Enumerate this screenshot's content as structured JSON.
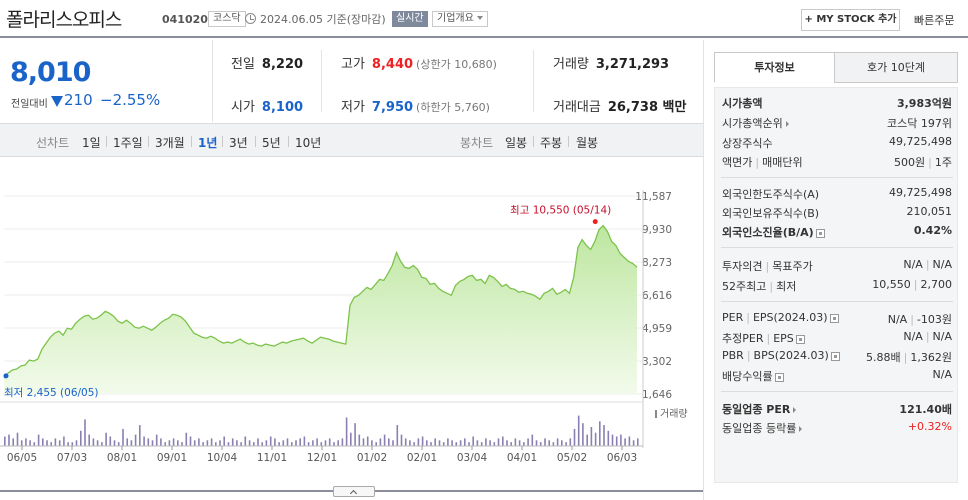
{
  "header": {
    "stock_name": "폴라리스오피스",
    "stock_code": "041020",
    "market": "코스닥",
    "base_date": "2024.06.05 기준(장마감)",
    "realtime_label": "실시간",
    "company_overview_label": "기업개요",
    "mystock_label": "+ MY STOCK 추가",
    "quick_order_label": "빠른주문"
  },
  "summary": {
    "price": "8,010",
    "change_label": "전일대비",
    "change_amount": "210",
    "change_rate": "−2.55%",
    "prev_close_label": "전일",
    "prev_close": "8,220",
    "open_label": "시가",
    "open": "8,100",
    "high_label": "고가",
    "high": "8,440",
    "upper_limit": "(상한가 10,680)",
    "low_label": "저가",
    "low": "7,950",
    "lower_limit": "(하한가 5,760)",
    "volume_label": "거래량",
    "volume": "3,271,293",
    "amount_label": "거래대금",
    "amount": "26,738 백만"
  },
  "period_tabs": {
    "line_label": "선차트",
    "line_periods": [
      "1일",
      "1주일",
      "3개월",
      "1년",
      "3년",
      "5년",
      "10년"
    ],
    "active": "1년",
    "candle_label": "봉차트",
    "candle_periods": [
      "일봉",
      "주봉",
      "월봉"
    ]
  },
  "chart_data": {
    "type": "area",
    "y_ticks": [
      "11,587",
      "9,930",
      "8,273",
      "6,616",
      "4,959",
      "3,302",
      "1,646"
    ],
    "ylim": [
      1646,
      11587
    ],
    "x_ticks": [
      "06/05",
      "07/03",
      "08/01",
      "09/01",
      "10/04",
      "11/01",
      "12/01",
      "01/02",
      "02/01",
      "03/04",
      "04/01",
      "05/02",
      "06/03"
    ],
    "high_annotation": "최고 10,550 (05/14)",
    "low_annotation": "최저 2,455 (06/05)",
    "volume_label": "거래량",
    "line_color": "#7cc34a",
    "values": [
      2455,
      2700,
      2850,
      2900,
      3050,
      3100,
      3350,
      3300,
      3400,
      3900,
      4200,
      4500,
      4700,
      4800,
      4600,
      4950,
      4900,
      5200,
      5400,
      5550,
      5600,
      5400,
      5450,
      5600,
      5800,
      5700,
      5550,
      5300,
      5200,
      5350,
      5200,
      5000,
      4950,
      5050,
      4950,
      4850,
      5000,
      5200,
      5350,
      5450,
      5650,
      5600,
      5500,
      5300,
      5000,
      4700,
      4600,
      4500,
      4450,
      4550,
      4450,
      4300,
      4200,
      4250,
      4200,
      4300,
      4400,
      4250,
      4150,
      4200,
      4100,
      4050,
      4150,
      4100,
      4050,
      4150,
      4250,
      4200,
      4300,
      4350,
      4400,
      4450,
      4300,
      4200,
      4350,
      4500,
      4450,
      4400,
      4300,
      4250,
      4200,
      4150,
      6100,
      6500,
      6600,
      6800,
      7000,
      6900,
      7150,
      7400,
      7350,
      7700,
      8100,
      8750,
      8300,
      8000,
      7950,
      8100,
      7900,
      7500,
      7450,
      7150,
      7200,
      6950,
      6800,
      6700,
      6600,
      7100,
      7300,
      7400,
      7550,
      7600,
      7350,
      7400,
      7200,
      7600,
      7500,
      7300,
      7050,
      7150,
      6950,
      6900,
      6750,
      6800,
      6700,
      6650,
      6550,
      6400,
      6700,
      6800,
      6950,
      6650,
      6750,
      6900,
      6700,
      7500,
      9000,
      9400,
      9100,
      8900,
      9300,
      9900,
      10100,
      9800,
      9300,
      9100,
      8700,
      8500,
      8300,
      8200,
      8010
    ],
    "volumes": [
      0.25,
      0.3,
      0.2,
      0.35,
      0.15,
      0.2,
      0.15,
      0.1,
      0.3,
      0.2,
      0.15,
      0.1,
      0.2,
      0.15,
      0.25,
      0.1,
      0.1,
      0.15,
      0.4,
      0.7,
      0.3,
      0.2,
      0.15,
      0.1,
      0.35,
      0.25,
      0.15,
      0.1,
      0.45,
      0.2,
      0.15,
      0.3,
      0.55,
      0.25,
      0.2,
      0.15,
      0.3,
      0.2,
      0.1,
      0.15,
      0.2,
      0.15,
      0.1,
      0.35,
      0.25,
      0.15,
      0.2,
      0.1,
      0.15,
      0.2,
      0.1,
      0.15,
      0.25,
      0.1,
      0.2,
      0.15,
      0.1,
      0.25,
      0.15,
      0.1,
      0.2,
      0.1,
      0.15,
      0.25,
      0.2,
      0.1,
      0.15,
      0.2,
      0.1,
      0.15,
      0.2,
      0.25,
      0.1,
      0.15,
      0.2,
      0.1,
      0.15,
      0.2,
      0.1,
      0.15,
      0.2,
      0.75,
      0.35,
      0.6,
      0.3,
      0.2,
      0.25,
      0.15,
      0.1,
      0.2,
      0.3,
      0.2,
      0.15,
      0.55,
      0.3,
      0.2,
      0.15,
      0.1,
      0.2,
      0.25,
      0.15,
      0.1,
      0.2,
      0.15,
      0.1,
      0.2,
      0.15,
      0.1,
      0.15,
      0.2,
      0.1,
      0.25,
      0.15,
      0.1,
      0.2,
      0.15,
      0.1,
      0.2,
      0.25,
      0.15,
      0.1,
      0.2,
      0.15,
      0.1,
      0.2,
      0.3,
      0.15,
      0.1,
      0.2,
      0.15,
      0.1,
      0.2,
      0.15,
      0.1,
      0.2,
      0.45,
      0.8,
      0.6,
      0.3,
      0.5,
      0.35,
      0.65,
      0.55,
      0.4,
      0.3,
      0.25,
      0.3,
      0.2,
      0.25,
      0.15,
      0.2
    ]
  },
  "right_panel": {
    "tab_invest": "투자정보",
    "tab_hoga": "호가 10단계",
    "rows": {
      "market_cap": {
        "label": "시가총액",
        "value": "3,983억원"
      },
      "market_cap_rank": {
        "label": "시가총액순위",
        "value": "코스닥 197위"
      },
      "listed_shares": {
        "label": "상장주식수",
        "value": "49,725,498"
      },
      "par_value": {
        "label": "액면가",
        "label2": "매매단위",
        "value": "500원",
        "value2": "1주"
      },
      "foreign_limit": {
        "label": "외국인한도주식수(A)",
        "value": "49,725,498"
      },
      "foreign_hold": {
        "label": "외국인보유주식수(B)",
        "value": "210,051"
      },
      "foreign_ratio": {
        "label": "외국인소진율(B/A)",
        "value": "0.42%"
      },
      "opinion": {
        "label": "투자의견",
        "label2": "목표주가",
        "value": "N/A",
        "value2": "N/A"
      },
      "week52": {
        "label": "52주최고",
        "label2": "최저",
        "value": "10,550",
        "value2": "2,700"
      },
      "per": {
        "label": "PER",
        "label2": "EPS(2024.03)",
        "value": "N/A",
        "value2": "-103원"
      },
      "est_per": {
        "label": "추정PER",
        "label2": "EPS",
        "value": "N/A",
        "value2": "N/A"
      },
      "pbr": {
        "label": "PBR",
        "label2": "BPS(2024.03)",
        "value": "5.88배",
        "value2": "1,362원"
      },
      "dividend": {
        "label": "배당수익률",
        "value": "N/A"
      },
      "sector_per": {
        "label": "동일업종 PER",
        "value": "121.40배"
      },
      "sector_change": {
        "label": "동일업종 등락률",
        "value": "+0.32%"
      }
    }
  }
}
